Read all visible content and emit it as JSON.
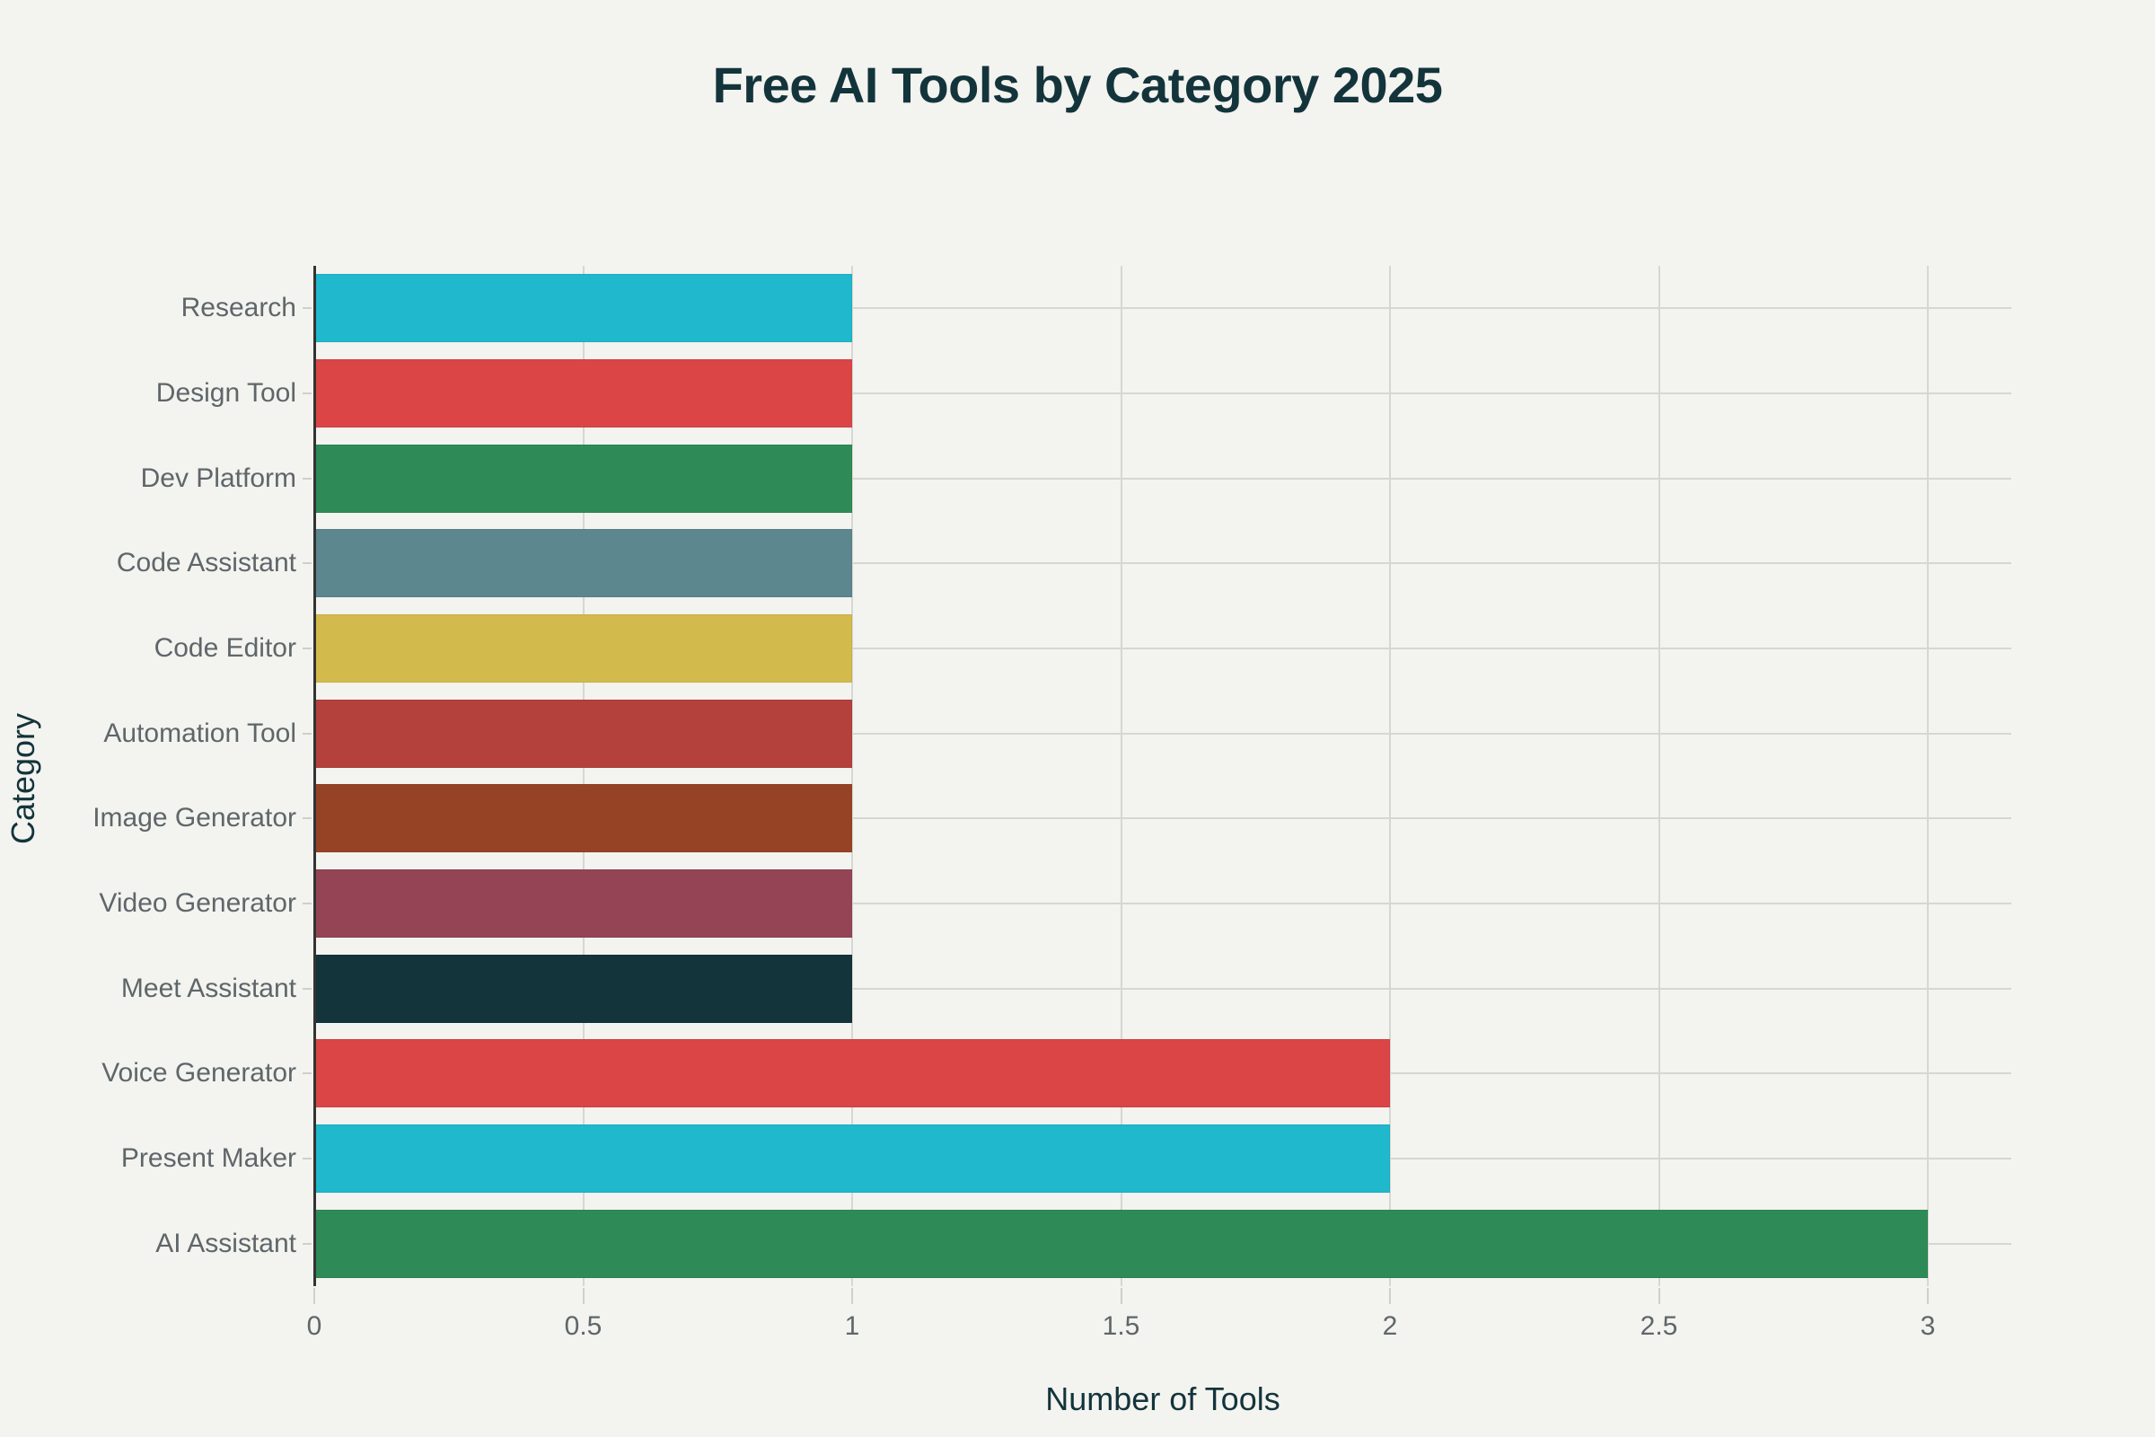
{
  "chart_data": {
    "type": "bar",
    "orientation": "horizontal",
    "title": "Free AI Tools by Category 2025",
    "xlabel": "Number of Tools",
    "ylabel": "Category",
    "xlim": [
      0,
      3.16
    ],
    "xticks": [
      0,
      0.5,
      1,
      1.5,
      2,
      2.5,
      3
    ],
    "xtick_labels": [
      "0",
      "0.5",
      "1",
      "1.5",
      "2",
      "2.5",
      "3"
    ],
    "grid": true,
    "legend": null,
    "categories": [
      "Research",
      "Design Tool",
      "Dev Platform",
      "Code Assistant",
      "Code Editor",
      "Automation Tool",
      "Image Generator",
      "Video Generator",
      "Meet Assistant",
      "Voice Generator",
      "Present Maker",
      "AI Assistant"
    ],
    "values": [
      1,
      1,
      1,
      1,
      1,
      1,
      1,
      1,
      1,
      2,
      2,
      3
    ],
    "colors": [
      "#1fb8cd",
      "#db4545",
      "#2e8b57",
      "#5d878f",
      "#d2ba4c",
      "#b4413c",
      "#964325",
      "#944454",
      "#13343b",
      "#db4545",
      "#1fb8cd",
      "#2e8b57"
    ]
  },
  "ui": {
    "background": "#f3f3ef",
    "title_color": "#13343b",
    "tick_color": "#5f666a",
    "grid_color": "#d6d6d2"
  }
}
